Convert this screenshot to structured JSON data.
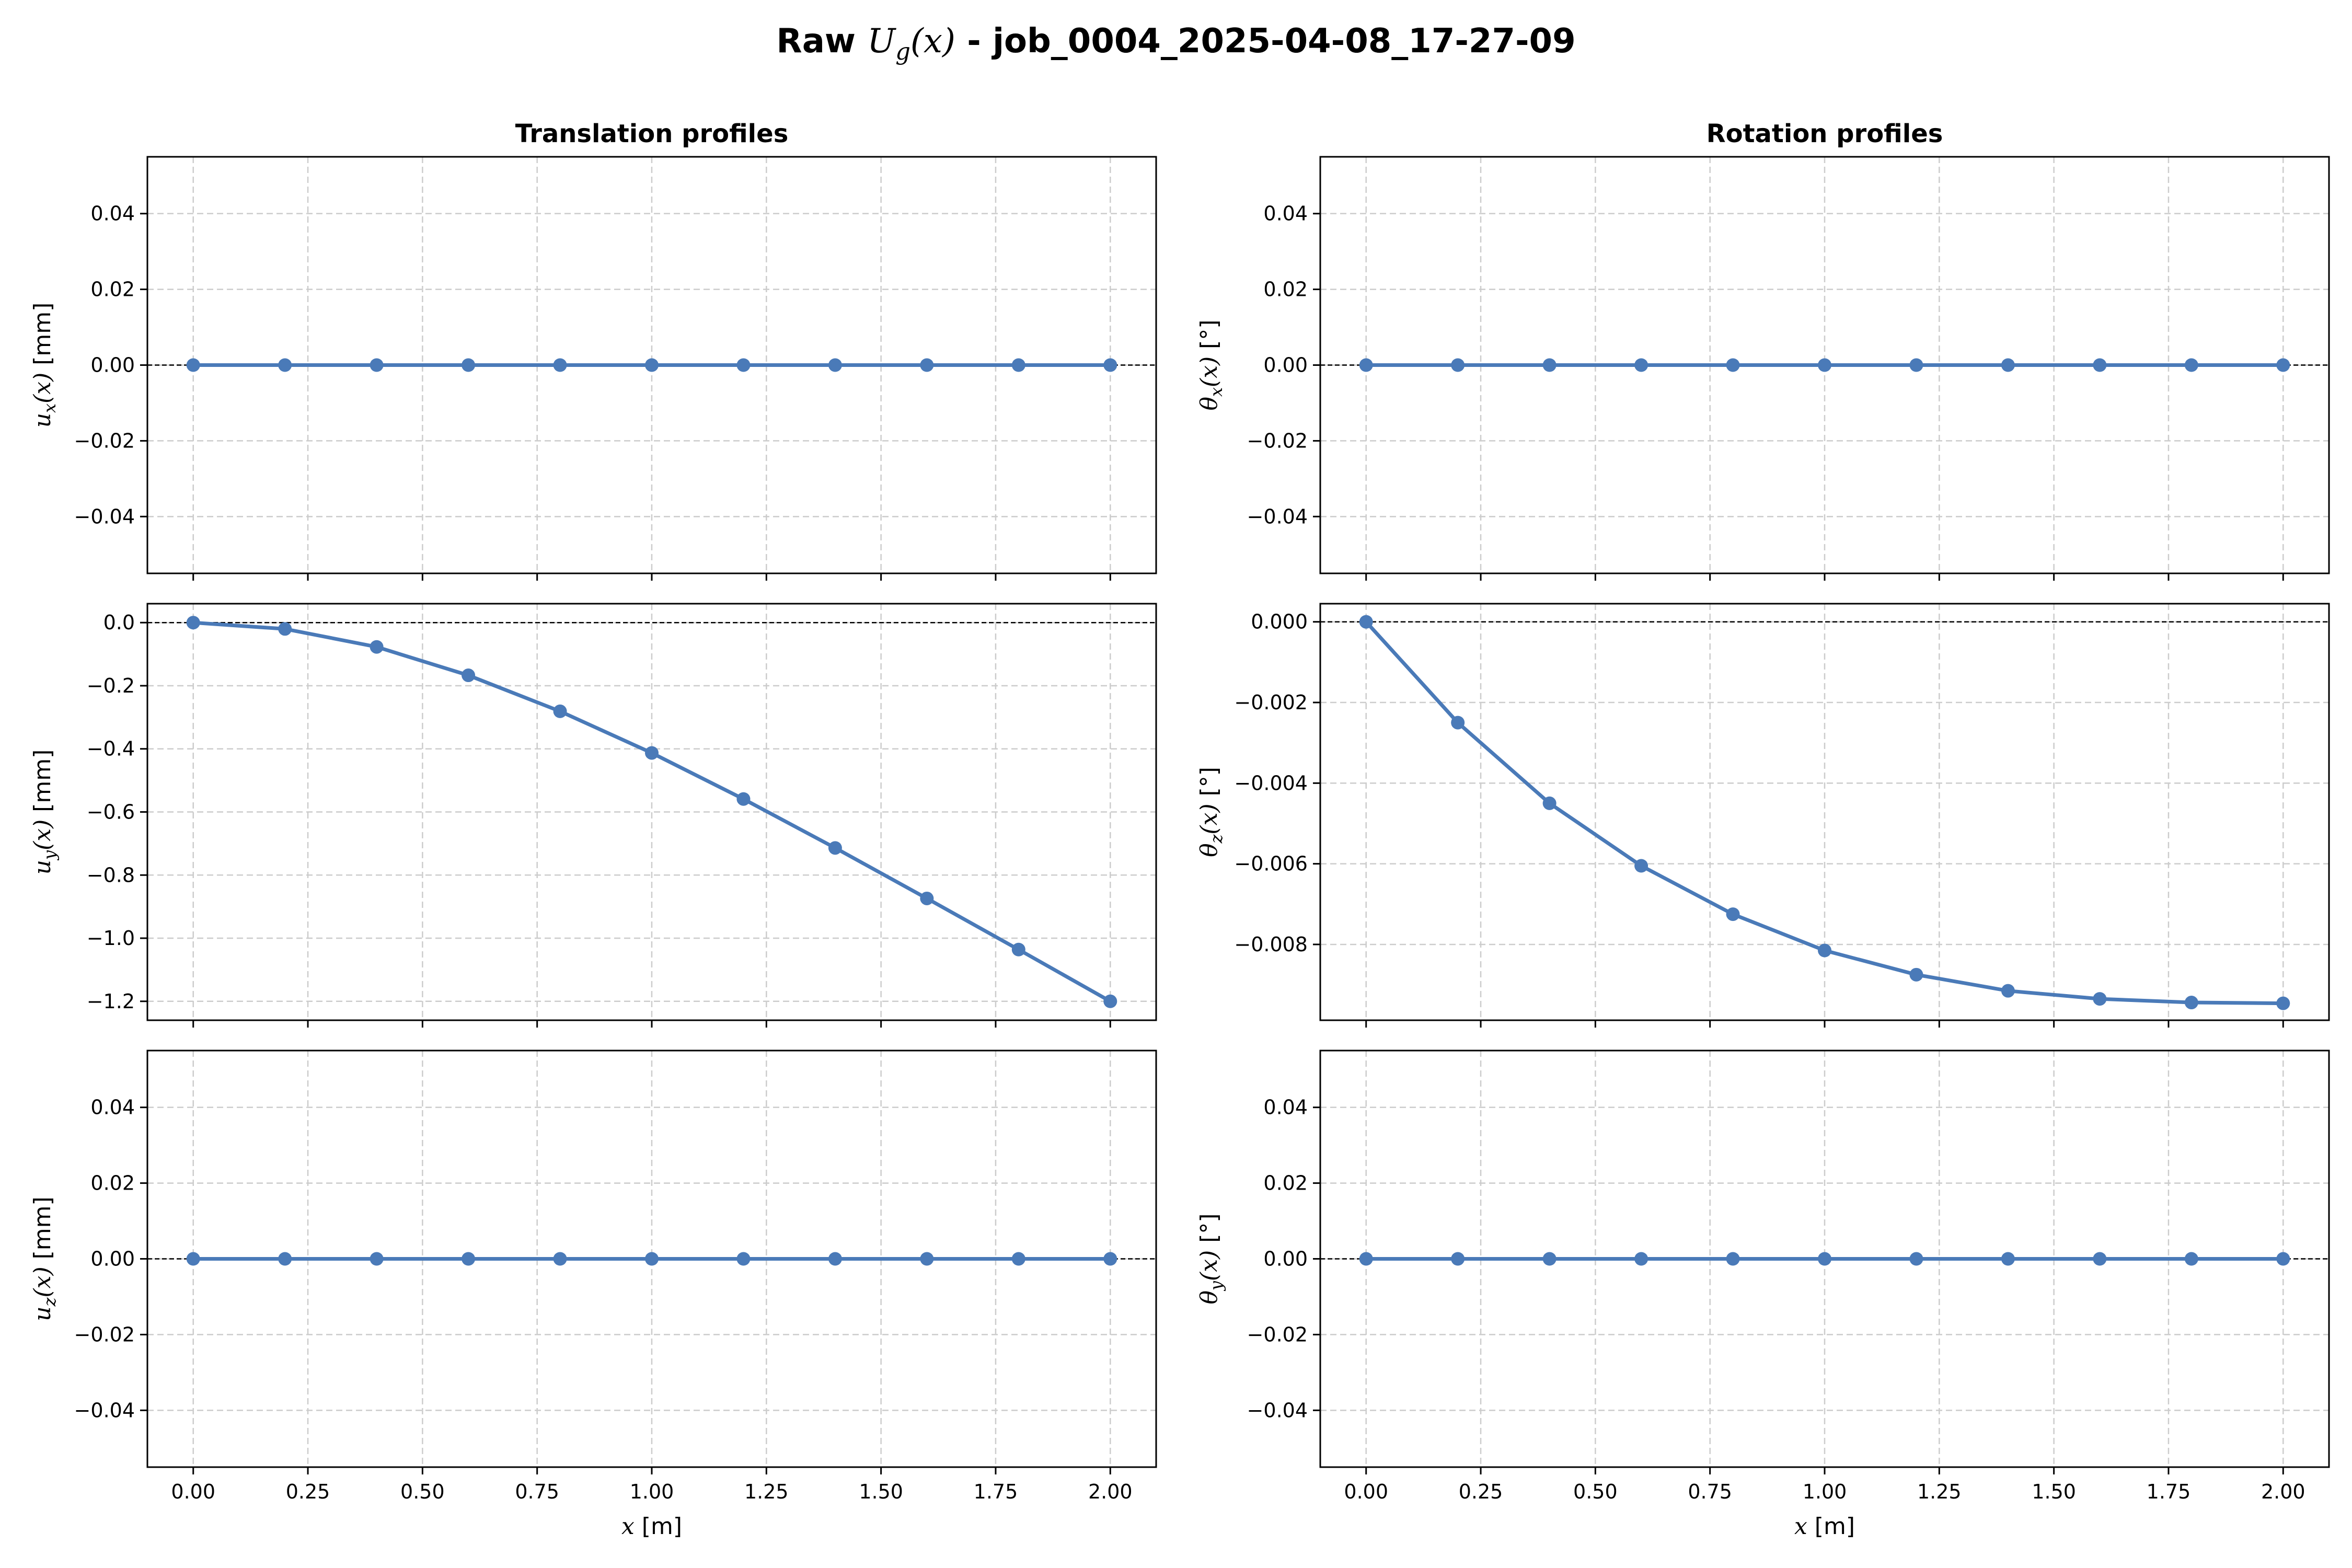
{
  "figure": {
    "title_prefix": "Raw ",
    "title_symbol": "U",
    "title_subscript": "g",
    "title_arg": "(x)",
    "title_suffix": " - job_0004_2025-04-08_17-27-09",
    "col_titles": [
      "Translation profiles",
      "Rotation profiles"
    ],
    "line_color": "#4a7ab8",
    "grid": true
  },
  "chart_data": [
    {
      "type": "line",
      "panel": "ux",
      "ylabel": "u_x(x) [mm]",
      "xlabel": "",
      "xlim": [
        -0.1,
        2.1
      ],
      "ylim": [
        -0.055,
        0.055
      ],
      "xticks": [
        0.0,
        0.25,
        0.5,
        0.75,
        1.0,
        1.25,
        1.5,
        1.75,
        2.0
      ],
      "xtick_labels": [
        "0.00",
        "0.25",
        "0.50",
        "0.75",
        "1.00",
        "1.25",
        "1.50",
        "1.75",
        "2.00"
      ],
      "yticks": [
        -0.04,
        -0.02,
        0.0,
        0.02,
        0.04
      ],
      "ytick_labels": [
        "−0.04",
        "−0.02",
        "0.00",
        "0.02",
        "0.04"
      ],
      "x": [
        0.0,
        0.2,
        0.4,
        0.6,
        0.8,
        1.0,
        1.2,
        1.4,
        1.6,
        1.8,
        2.0
      ],
      "series": [
        {
          "values": [
            0,
            0,
            0,
            0,
            0,
            0,
            0,
            0,
            0,
            0,
            0
          ]
        }
      ]
    },
    {
      "type": "line",
      "panel": "thx",
      "ylabel": "θ_x(x) [°]",
      "xlabel": "",
      "xlim": [
        -0.1,
        2.1
      ],
      "ylim": [
        -0.055,
        0.055
      ],
      "xticks": [
        0.0,
        0.25,
        0.5,
        0.75,
        1.0,
        1.25,
        1.5,
        1.75,
        2.0
      ],
      "xtick_labels": [
        "0.00",
        "0.25",
        "0.50",
        "0.75",
        "1.00",
        "1.25",
        "1.50",
        "1.75",
        "2.00"
      ],
      "yticks": [
        -0.04,
        -0.02,
        0.0,
        0.02,
        0.04
      ],
      "ytick_labels": [
        "−0.04",
        "−0.02",
        "0.00",
        "0.02",
        "0.04"
      ],
      "x": [
        0.0,
        0.2,
        0.4,
        0.6,
        0.8,
        1.0,
        1.2,
        1.4,
        1.6,
        1.8,
        2.0
      ],
      "series": [
        {
          "values": [
            0,
            0,
            0,
            0,
            0,
            0,
            0,
            0,
            0,
            0,
            0
          ]
        }
      ]
    },
    {
      "type": "line",
      "panel": "uy",
      "ylabel": "u_y(x) [mm]",
      "xlabel": "",
      "xlim": [
        -0.1,
        2.1
      ],
      "ylim": [
        -1.26,
        0.06
      ],
      "xticks": [
        0.0,
        0.25,
        0.5,
        0.75,
        1.0,
        1.25,
        1.5,
        1.75,
        2.0
      ],
      "xtick_labels": [
        "0.00",
        "0.25",
        "0.50",
        "0.75",
        "1.00",
        "1.25",
        "1.50",
        "1.75",
        "2.00"
      ],
      "yticks": [
        -1.2,
        -1.0,
        -0.8,
        -0.6,
        -0.4,
        -0.2,
        0.0
      ],
      "ytick_labels": [
        "−1.2",
        "−1.0",
        "−0.8",
        "−0.6",
        "−0.4",
        "−0.2",
        "0.0"
      ],
      "x": [
        0.0,
        0.2,
        0.4,
        0.6,
        0.8,
        1.0,
        1.2,
        1.4,
        1.6,
        1.8,
        2.0
      ],
      "series": [
        {
          "values": [
            0.0,
            -0.02,
            -0.077,
            -0.167,
            -0.281,
            -0.413,
            -0.559,
            -0.714,
            -0.874,
            -1.036,
            -1.2
          ]
        }
      ]
    },
    {
      "type": "line",
      "panel": "thz",
      "ylabel": "θ_z(x) [°]",
      "xlabel": "",
      "xlim": [
        -0.1,
        2.1
      ],
      "ylim": [
        -0.00988,
        0.00045
      ],
      "xticks": [
        0.0,
        0.25,
        0.5,
        0.75,
        1.0,
        1.25,
        1.5,
        1.75,
        2.0
      ],
      "xtick_labels": [
        "0.00",
        "0.25",
        "0.50",
        "0.75",
        "1.00",
        "1.25",
        "1.50",
        "1.75",
        "2.00"
      ],
      "yticks": [
        -0.008,
        -0.006,
        -0.004,
        -0.002,
        0.0
      ],
      "ytick_labels": [
        "−0.008",
        "−0.006",
        "−0.004",
        "−0.002",
        "0.000"
      ],
      "x": [
        0.0,
        0.2,
        0.4,
        0.6,
        0.8,
        1.0,
        1.2,
        1.4,
        1.6,
        1.8,
        2.0
      ],
      "series": [
        {
          "values": [
            0.0,
            -0.0025,
            -0.0045,
            -0.00605,
            -0.00725,
            -0.00815,
            -0.00875,
            -0.00915,
            -0.00935,
            -0.00944,
            -0.00946
          ]
        }
      ]
    },
    {
      "type": "line",
      "panel": "uz",
      "ylabel": "u_z(x) [mm]",
      "xlabel": "x [m]",
      "xlim": [
        -0.1,
        2.1
      ],
      "ylim": [
        -0.055,
        0.055
      ],
      "xticks": [
        0.0,
        0.25,
        0.5,
        0.75,
        1.0,
        1.25,
        1.5,
        1.75,
        2.0
      ],
      "xtick_labels": [
        "0.00",
        "0.25",
        "0.50",
        "0.75",
        "1.00",
        "1.25",
        "1.50",
        "1.75",
        "2.00"
      ],
      "yticks": [
        -0.04,
        -0.02,
        0.0,
        0.02,
        0.04
      ],
      "ytick_labels": [
        "−0.04",
        "−0.02",
        "0.00",
        "0.02",
        "0.04"
      ],
      "x": [
        0.0,
        0.2,
        0.4,
        0.6,
        0.8,
        1.0,
        1.2,
        1.4,
        1.6,
        1.8,
        2.0
      ],
      "series": [
        {
          "values": [
            0,
            0,
            0,
            0,
            0,
            0,
            0,
            0,
            0,
            0,
            0
          ]
        }
      ]
    },
    {
      "type": "line",
      "panel": "thy",
      "ylabel": "θ_y(x) [°]",
      "xlabel": "x [m]",
      "xlim": [
        -0.1,
        2.1
      ],
      "ylim": [
        -0.055,
        0.055
      ],
      "xticks": [
        0.0,
        0.25,
        0.5,
        0.75,
        1.0,
        1.25,
        1.5,
        1.75,
        2.0
      ],
      "xtick_labels": [
        "0.00",
        "0.25",
        "0.50",
        "0.75",
        "1.00",
        "1.25",
        "1.50",
        "1.75",
        "2.00"
      ],
      "yticks": [
        -0.04,
        -0.02,
        0.0,
        0.02,
        0.04
      ],
      "ytick_labels": [
        "−0.04",
        "−0.02",
        "0.00",
        "0.02",
        "0.04"
      ],
      "x": [
        0.0,
        0.2,
        0.4,
        0.6,
        0.8,
        1.0,
        1.2,
        1.4,
        1.6,
        1.8,
        2.0
      ],
      "series": [
        {
          "values": [
            0,
            0,
            0,
            0,
            0,
            0,
            0,
            0,
            0,
            0,
            0
          ]
        }
      ]
    }
  ]
}
